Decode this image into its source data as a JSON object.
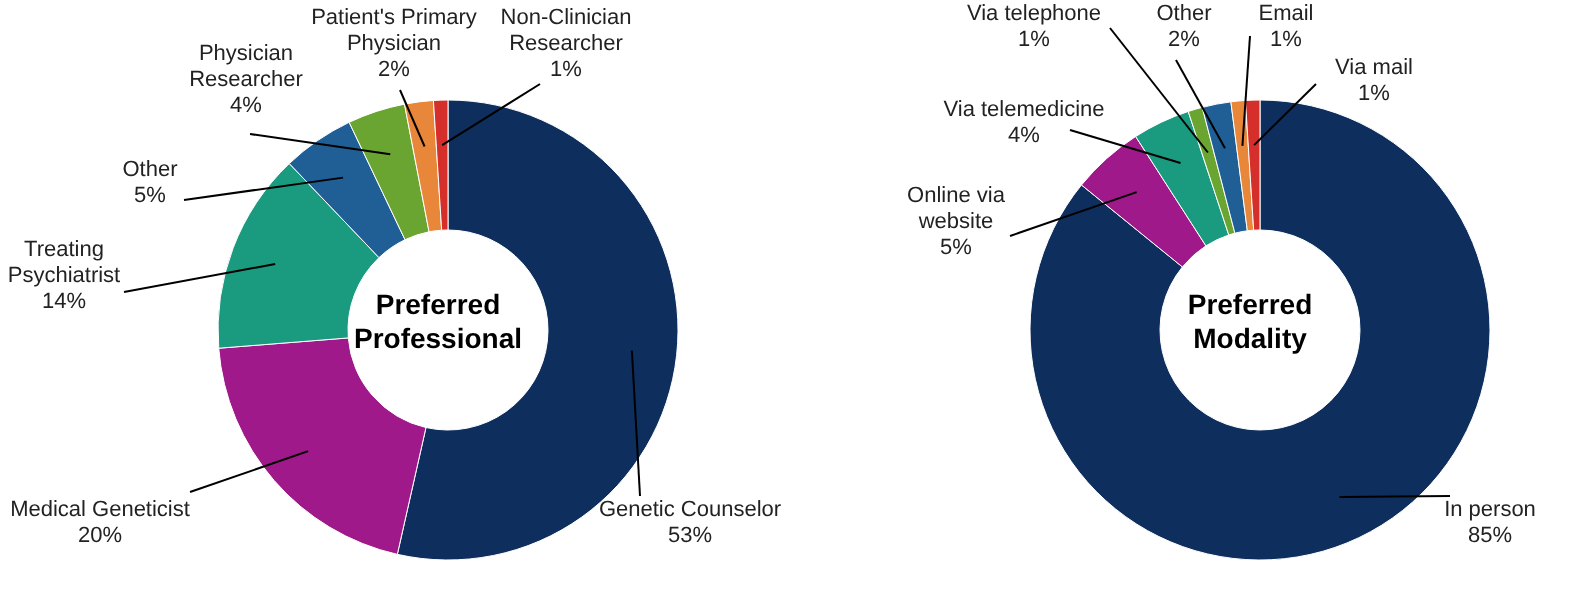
{
  "chart_data": [
    {
      "type": "donut",
      "title": "Preferred Professional",
      "categories": [
        "Genetic Counselor",
        "Medical Geneticist",
        "Treating Psychiatrist",
        "Other",
        "Physician Researcher",
        "Patient's Primary Physician",
        "Non-Clinician Researcher"
      ],
      "values": [
        53,
        20,
        14,
        5,
        4,
        2,
        1
      ],
      "colors": [
        "#0e2f5e",
        "#a0198a",
        "#1a9a7e",
        "#1f5f96",
        "#6aa532",
        "#e8873a",
        "#d42f2a"
      ],
      "value_labels": [
        "53%",
        "20%",
        "14%",
        "5%",
        "4%",
        "2%",
        "1%"
      ],
      "legend": false
    },
    {
      "type": "donut",
      "title": "Preferred Modality",
      "categories": [
        "In person",
        "Online via website",
        "Via telemedicine",
        "Via telephone",
        "Other",
        "Email",
        "Via mail"
      ],
      "values": [
        85,
        5,
        4,
        1,
        2,
        1,
        1
      ],
      "colors": [
        "#0e2f5e",
        "#a0198a",
        "#1a9a7e",
        "#6aa532",
        "#1f5f96",
        "#e8873a",
        "#d42f2a"
      ],
      "value_labels": [
        "85%",
        "5%",
        "4%",
        "1%",
        "2%",
        "1%",
        "1%"
      ],
      "legend": false
    }
  ]
}
